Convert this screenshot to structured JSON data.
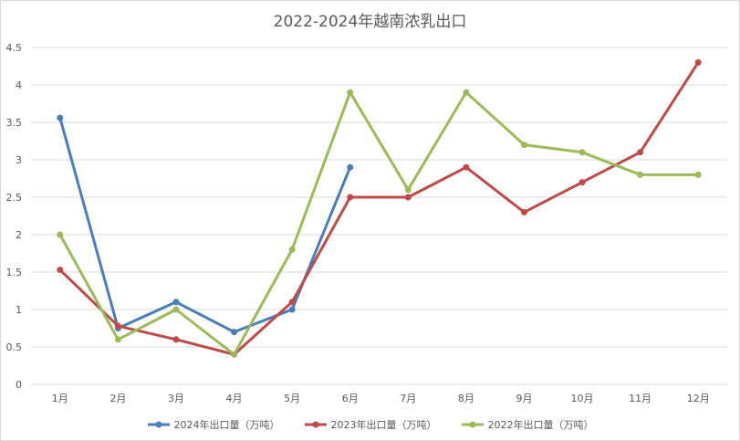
{
  "chart_data": {
    "type": "line",
    "title": "2022-2024年越南浓乳出口",
    "categories": [
      "1月",
      "2月",
      "3月",
      "4月",
      "5月",
      "6月",
      "7月",
      "8月",
      "9月",
      "10月",
      "11月",
      "12月"
    ],
    "ylim": [
      0,
      4.5
    ],
    "yticks": [
      "0",
      "0.5",
      "1",
      "1.5",
      "2",
      "2.5",
      "3",
      "3.5",
      "4",
      "4.5"
    ],
    "ytick_values": [
      0,
      0.5,
      1,
      1.5,
      2,
      2.5,
      3,
      3.5,
      4,
      4.5
    ],
    "grid": true,
    "legend_position": "bottom",
    "series": [
      {
        "name": "2024年出口量（万吨）",
        "color": "#4a7ebb",
        "values": [
          3.56,
          0.75,
          1.1,
          0.7,
          1.0,
          2.9,
          null,
          null,
          null,
          null,
          null,
          null
        ]
      },
      {
        "name": "2023年出口量（万吨）",
        "color": "#be4b48",
        "values": [
          1.53,
          0.78,
          0.6,
          0.4,
          1.1,
          2.5,
          2.5,
          2.9,
          2.3,
          2.7,
          3.1,
          4.3
        ]
      },
      {
        "name": "2022年出口量（万吨）",
        "color": "#9bbb59",
        "values": [
          2.0,
          0.6,
          1.0,
          0.4,
          1.8,
          3.9,
          2.6,
          3.9,
          3.2,
          3.1,
          2.8,
          2.8
        ]
      }
    ]
  }
}
